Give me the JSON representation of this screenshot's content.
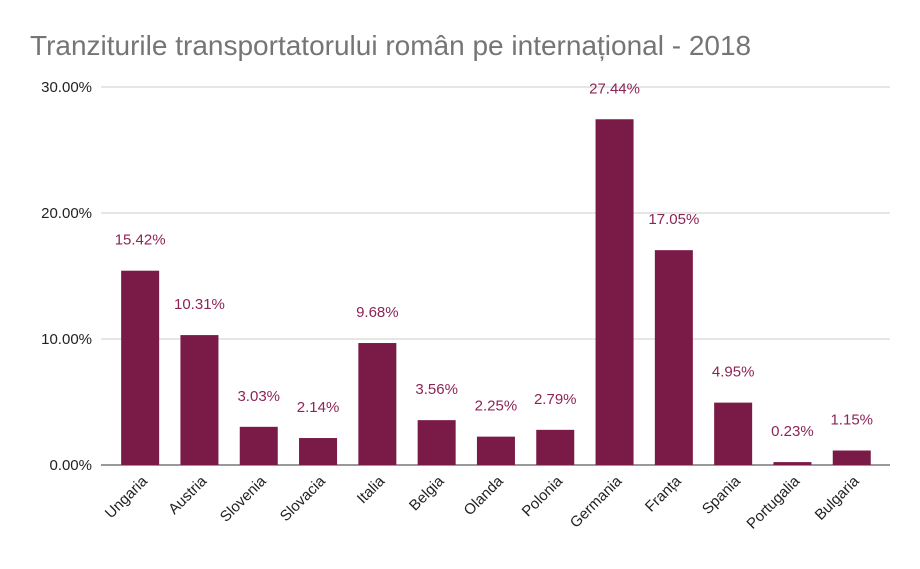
{
  "chart_data": {
    "type": "bar",
    "title": "Tranziturile transportatorului român pe internațional - 2018",
    "xlabel": "",
    "ylabel": "",
    "categories": [
      "Ungaria",
      "Austria",
      "Slovenia",
      "Slovacia",
      "Italia",
      "Belgia",
      "Olanda",
      "Polonia",
      "Germania",
      "Franța",
      "Spania",
      "Portugalia",
      "Bulgaria"
    ],
    "values": [
      15.42,
      10.31,
      3.03,
      2.14,
      9.68,
      3.56,
      2.25,
      2.79,
      27.44,
      17.05,
      4.95,
      0.23,
      1.15
    ],
    "data_labels": [
      "15.42%",
      "10.31%",
      "3.03%",
      "2.14%",
      "9.68%",
      "3.56%",
      "2.25%",
      "2.79%",
      "27.44%",
      "17.05%",
      "4.95%",
      "0.23%",
      "1.15%"
    ],
    "ylim": [
      0,
      30
    ],
    "yticks": [
      0,
      10,
      20,
      30
    ],
    "ytick_labels": [
      "0.00%",
      "10.00%",
      "20.00%",
      "30.00%"
    ],
    "grid": true,
    "legend": "none",
    "colors": {
      "bar": "#791a47",
      "label": "#8c2456",
      "title": "#757575",
      "grid": "#cccccc"
    }
  }
}
